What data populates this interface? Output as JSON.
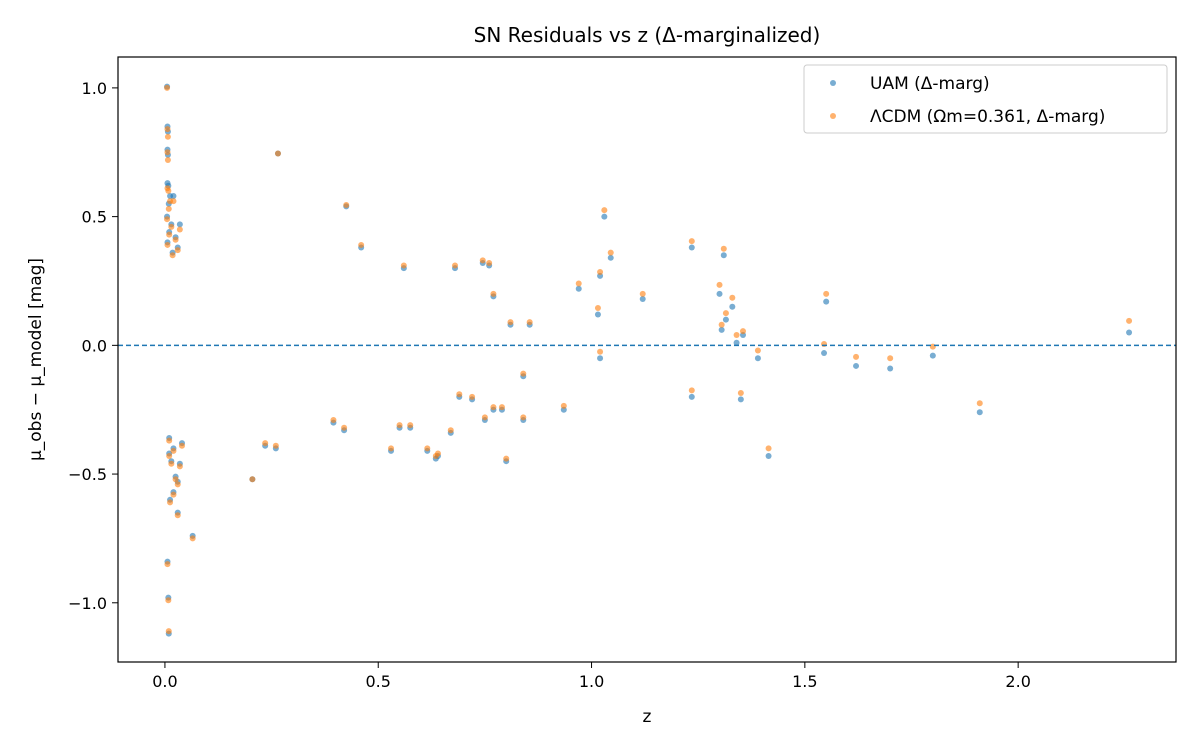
{
  "chart_data": {
    "type": "scatter",
    "title": "SN Residuals vs z (Δ-marginalized)",
    "xlabel": "z",
    "ylabel": "μ_obs − μ_model [mag]",
    "xlim": [
      -0.11,
      2.37
    ],
    "ylim": [
      -1.23,
      1.12
    ],
    "xticks": [
      0.0,
      0.5,
      1.0,
      1.5,
      2.0
    ],
    "xtick_labels": [
      "0.0",
      "0.5",
      "1.0",
      "1.5",
      "2.0"
    ],
    "yticks": [
      -1.0,
      -0.5,
      0.0,
      0.5,
      1.0
    ],
    "ytick_labels": [
      "−1.0",
      "−0.5",
      "0.0",
      "0.5",
      "1.0"
    ],
    "grid": false,
    "legend_position": "top-right",
    "reference_line": {
      "y": 0.0,
      "style": "dashed",
      "color": "#1f77b4"
    },
    "series": [
      {
        "name": "UAM (Δ-marg)",
        "color": "#1f77b4",
        "points": [
          [
            0.005,
            1.005
          ],
          [
            0.006,
            0.85
          ],
          [
            0.007,
            0.83
          ],
          [
            0.006,
            0.76
          ],
          [
            0.007,
            0.74
          ],
          [
            0.006,
            0.63
          ],
          [
            0.008,
            0.62
          ],
          [
            0.012,
            0.58
          ],
          [
            0.02,
            0.58
          ],
          [
            0.009,
            0.55
          ],
          [
            0.005,
            0.5
          ],
          [
            0.015,
            0.47
          ],
          [
            0.035,
            0.47
          ],
          [
            0.01,
            0.44
          ],
          [
            0.025,
            0.42
          ],
          [
            0.006,
            0.4
          ],
          [
            0.03,
            0.38
          ],
          [
            0.018,
            0.36
          ],
          [
            0.008,
            -0.98
          ],
          [
            0.009,
            -1.12
          ],
          [
            0.006,
            -0.84
          ],
          [
            0.012,
            -0.6
          ],
          [
            0.02,
            -0.57
          ],
          [
            0.03,
            -0.53
          ],
          [
            0.025,
            -0.51
          ],
          [
            0.03,
            -0.65
          ],
          [
            0.035,
            -0.46
          ],
          [
            0.015,
            -0.45
          ],
          [
            0.01,
            -0.42
          ],
          [
            0.065,
            -0.74
          ],
          [
            0.02,
            -0.4
          ],
          [
            0.04,
            -0.38
          ],
          [
            0.01,
            -0.36
          ],
          [
            0.205,
            -0.52
          ],
          [
            0.265,
            0.745
          ],
          [
            0.235,
            -0.39
          ],
          [
            0.26,
            -0.4
          ],
          [
            0.425,
            0.54
          ],
          [
            0.42,
            -0.33
          ],
          [
            0.395,
            -0.3
          ],
          [
            0.46,
            0.38
          ],
          [
            0.53,
            -0.41
          ],
          [
            0.55,
            -0.32
          ],
          [
            0.56,
            0.3
          ],
          [
            0.575,
            -0.32
          ],
          [
            0.615,
            -0.41
          ],
          [
            0.635,
            -0.44
          ],
          [
            0.64,
            -0.43
          ],
          [
            0.67,
            -0.34
          ],
          [
            0.68,
            0.3
          ],
          [
            0.69,
            -0.2
          ],
          [
            0.72,
            -0.21
          ],
          [
            0.745,
            0.32
          ],
          [
            0.75,
            -0.29
          ],
          [
            0.76,
            0.31
          ],
          [
            0.77,
            -0.25
          ],
          [
            0.77,
            0.19
          ],
          [
            0.79,
            -0.25
          ],
          [
            0.8,
            -0.45
          ],
          [
            0.81,
            0.08
          ],
          [
            0.84,
            -0.29
          ],
          [
            0.855,
            0.08
          ],
          [
            0.84,
            -0.12
          ],
          [
            0.935,
            -0.25
          ],
          [
            0.97,
            0.22
          ],
          [
            1.015,
            0.12
          ],
          [
            1.02,
            0.27
          ],
          [
            1.02,
            -0.05
          ],
          [
            1.03,
            0.5
          ],
          [
            1.045,
            0.34
          ],
          [
            1.12,
            0.18
          ],
          [
            1.235,
            0.38
          ],
          [
            1.235,
            -0.2
          ],
          [
            1.3,
            0.2
          ],
          [
            1.305,
            0.06
          ],
          [
            1.31,
            0.35
          ],
          [
            1.315,
            0.1
          ],
          [
            1.33,
            0.15
          ],
          [
            1.34,
            0.01
          ],
          [
            1.35,
            -0.21
          ],
          [
            1.355,
            0.04
          ],
          [
            1.39,
            -0.05
          ],
          [
            1.415,
            -0.43
          ],
          [
            1.545,
            -0.03
          ],
          [
            1.55,
            0.17
          ],
          [
            1.62,
            -0.08
          ],
          [
            1.7,
            -0.09
          ],
          [
            1.8,
            -0.04
          ],
          [
            1.91,
            -0.26
          ],
          [
            2.26,
            0.05
          ]
        ]
      },
      {
        "name": "ΛCDM (Ωm=0.361, Δ-marg)",
        "color": "#ff7f0e",
        "points": [
          [
            0.005,
            1.0
          ],
          [
            0.006,
            0.84
          ],
          [
            0.007,
            0.81
          ],
          [
            0.006,
            0.75
          ],
          [
            0.007,
            0.72
          ],
          [
            0.006,
            0.61
          ],
          [
            0.008,
            0.6
          ],
          [
            0.012,
            0.56
          ],
          [
            0.02,
            0.56
          ],
          [
            0.009,
            0.53
          ],
          [
            0.005,
            0.49
          ],
          [
            0.015,
            0.46
          ],
          [
            0.035,
            0.45
          ],
          [
            0.01,
            0.43
          ],
          [
            0.025,
            0.41
          ],
          [
            0.006,
            0.39
          ],
          [
            0.03,
            0.37
          ],
          [
            0.018,
            0.35
          ],
          [
            0.008,
            -0.99
          ],
          [
            0.009,
            -1.11
          ],
          [
            0.006,
            -0.85
          ],
          [
            0.012,
            -0.61
          ],
          [
            0.02,
            -0.58
          ],
          [
            0.03,
            -0.54
          ],
          [
            0.025,
            -0.52
          ],
          [
            0.03,
            -0.66
          ],
          [
            0.035,
            -0.47
          ],
          [
            0.015,
            -0.46
          ],
          [
            0.01,
            -0.43
          ],
          [
            0.065,
            -0.75
          ],
          [
            0.02,
            -0.41
          ],
          [
            0.04,
            -0.39
          ],
          [
            0.01,
            -0.37
          ],
          [
            0.205,
            -0.52
          ],
          [
            0.265,
            0.745
          ],
          [
            0.235,
            -0.38
          ],
          [
            0.26,
            -0.39
          ],
          [
            0.425,
            0.545
          ],
          [
            0.42,
            -0.32
          ],
          [
            0.395,
            -0.29
          ],
          [
            0.46,
            0.39
          ],
          [
            0.53,
            -0.4
          ],
          [
            0.55,
            -0.31
          ],
          [
            0.56,
            0.31
          ],
          [
            0.575,
            -0.31
          ],
          [
            0.615,
            -0.4
          ],
          [
            0.635,
            -0.43
          ],
          [
            0.64,
            -0.42
          ],
          [
            0.67,
            -0.33
          ],
          [
            0.68,
            0.31
          ],
          [
            0.69,
            -0.19
          ],
          [
            0.72,
            -0.2
          ],
          [
            0.745,
            0.33
          ],
          [
            0.75,
            -0.28
          ],
          [
            0.76,
            0.32
          ],
          [
            0.77,
            -0.24
          ],
          [
            0.77,
            0.2
          ],
          [
            0.79,
            -0.24
          ],
          [
            0.8,
            -0.44
          ],
          [
            0.81,
            0.09
          ],
          [
            0.84,
            -0.28
          ],
          [
            0.855,
            0.09
          ],
          [
            0.84,
            -0.11
          ],
          [
            0.935,
            -0.235
          ],
          [
            0.97,
            0.24
          ],
          [
            1.015,
            0.145
          ],
          [
            1.02,
            0.285
          ],
          [
            1.02,
            -0.025
          ],
          [
            1.03,
            0.525
          ],
          [
            1.045,
            0.36
          ],
          [
            1.12,
            0.2
          ],
          [
            1.235,
            0.405
          ],
          [
            1.235,
            -0.175
          ],
          [
            1.3,
            0.235
          ],
          [
            1.305,
            0.08
          ],
          [
            1.31,
            0.375
          ],
          [
            1.315,
            0.125
          ],
          [
            1.33,
            0.185
          ],
          [
            1.34,
            0.04
          ],
          [
            1.35,
            -0.185
          ],
          [
            1.355,
            0.055
          ],
          [
            1.39,
            -0.02
          ],
          [
            1.415,
            -0.4
          ],
          [
            1.545,
            0.005
          ],
          [
            1.55,
            0.2
          ],
          [
            1.62,
            -0.045
          ],
          [
            1.7,
            -0.05
          ],
          [
            1.8,
            -0.005
          ],
          [
            1.91,
            -0.225
          ],
          [
            2.26,
            0.095
          ]
        ]
      }
    ]
  }
}
